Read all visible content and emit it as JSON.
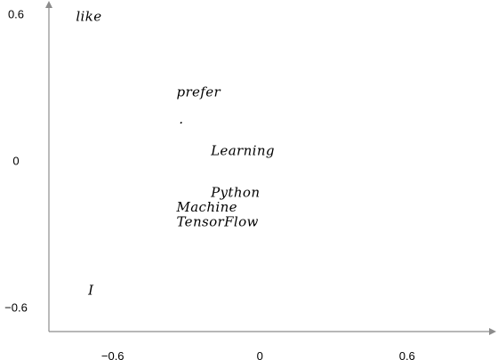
{
  "chart_data": {
    "type": "scatter",
    "title": "",
    "xlabel": "",
    "ylabel": "",
    "xlim": [
      -0.86,
      0.88
    ],
    "ylim": [
      -0.7,
      0.62
    ],
    "x_ticks": [
      {
        "value": -0.6,
        "label": "−0.6"
      },
      {
        "value": 0,
        "label": "0"
      },
      {
        "value": 0.6,
        "label": "0.6"
      }
    ],
    "y_ticks": [
      {
        "value": 0.6,
        "label": "0.6"
      },
      {
        "value": 0,
        "label": "0"
      },
      {
        "value": -0.6,
        "label": "−0.6"
      }
    ],
    "grid": false,
    "legend": "none",
    "colors": {
      "axis": "#8c8c8c",
      "text": "#000000"
    },
    "points": [
      {
        "word": "like",
        "x": -0.75,
        "y": 0.59
      },
      {
        "word": "prefer",
        "x": -0.34,
        "y": 0.28
      },
      {
        "word": ".",
        "x": -0.33,
        "y": 0.17
      },
      {
        "word": "Learning",
        "x": -0.2,
        "y": 0.04
      },
      {
        "word": "Python",
        "x": -0.2,
        "y": -0.13
      },
      {
        "word": "Machine",
        "x": -0.34,
        "y": -0.19
      },
      {
        "word": "TensorFlow",
        "x": -0.34,
        "y": -0.25
      },
      {
        "word": "I",
        "x": -0.7,
        "y": -0.53
      }
    ]
  }
}
